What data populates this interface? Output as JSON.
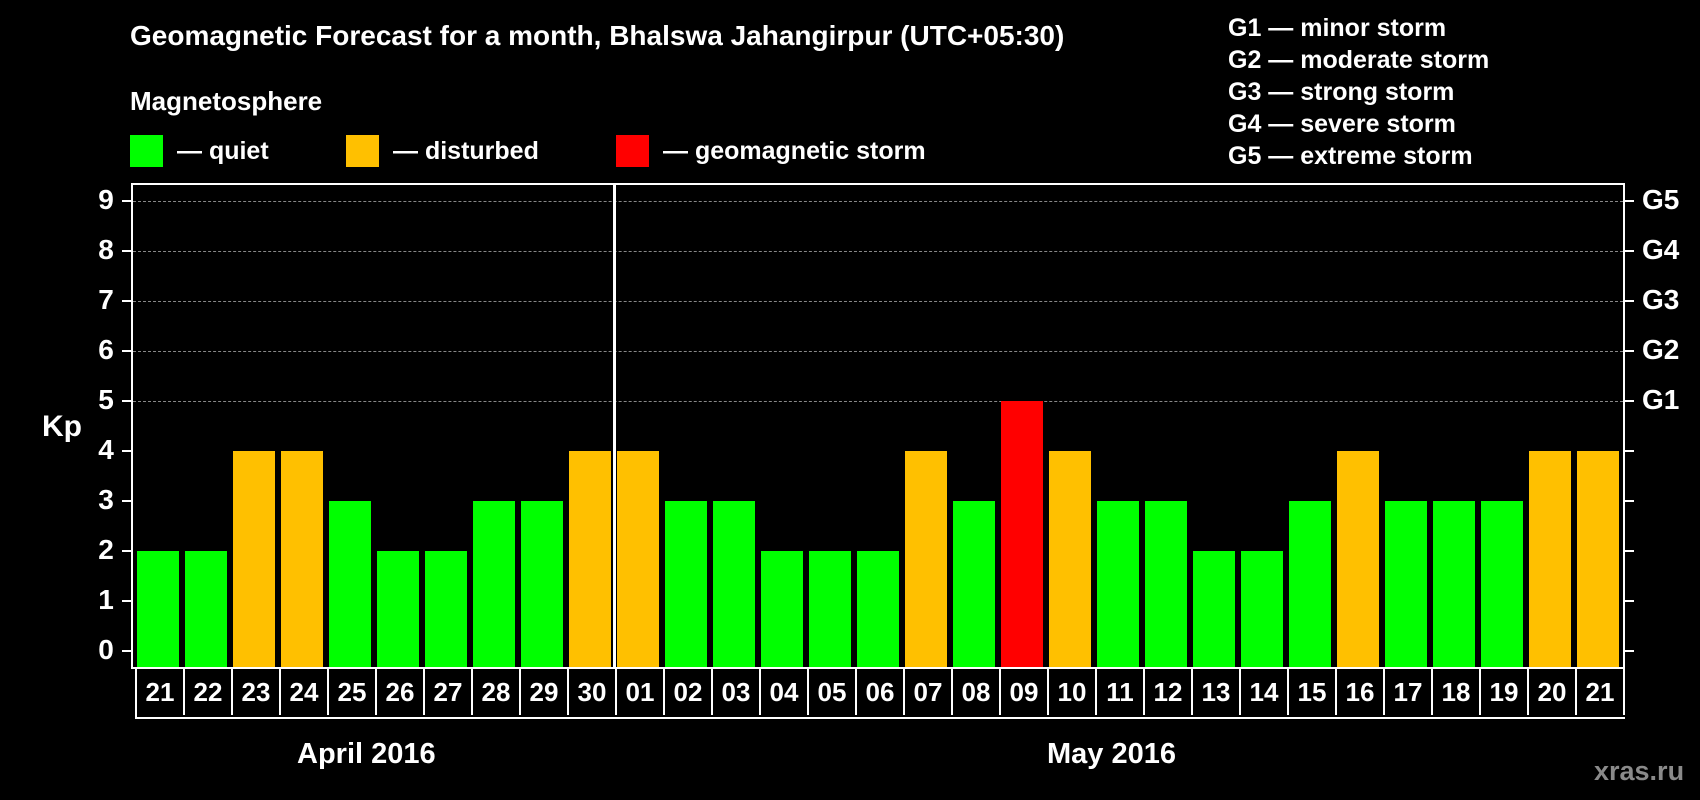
{
  "header": {
    "title": "Geomagnetic Forecast for a month, Bhalswa Jahangirpur (UTC+05:30)",
    "subtitle": "Magnetosphere"
  },
  "legend": [
    {
      "label": "— quiet",
      "color": "#00ff00"
    },
    {
      "label": "— disturbed",
      "color": "#ffc000"
    },
    {
      "label": "— geomagnetic storm",
      "color": "#ff0000"
    }
  ],
  "storm_scale": [
    "G1 — minor storm",
    "G2 — moderate storm",
    "G3 — strong storm",
    "G4 — severe storm",
    "G5 — extreme storm"
  ],
  "axis": {
    "ylabel": "Kp",
    "yticks": [
      "0",
      "1",
      "2",
      "3",
      "4",
      "5",
      "6",
      "7",
      "8",
      "9"
    ],
    "right_ticks": {
      "5": "G1",
      "6": "G2",
      "7": "G3",
      "8": "G4",
      "9": "G5"
    }
  },
  "months": {
    "first": "April 2016",
    "second": "May 2016"
  },
  "watermark": "xras.ru",
  "chart_data": {
    "type": "bar",
    "title": "Geomagnetic Forecast for a month, Bhalswa Jahangirpur (UTC+05:30)",
    "xlabel": "",
    "ylabel": "Kp",
    "ylim": [
      0,
      9
    ],
    "grid": true,
    "categories": [
      "21",
      "22",
      "23",
      "24",
      "25",
      "26",
      "27",
      "28",
      "29",
      "30",
      "01",
      "02",
      "03",
      "04",
      "05",
      "06",
      "07",
      "08",
      "09",
      "10",
      "11",
      "12",
      "13",
      "14",
      "15",
      "16",
      "17",
      "18",
      "19",
      "20",
      "21"
    ],
    "values": [
      2,
      2,
      4,
      4,
      3,
      2,
      2,
      3,
      3,
      4,
      4,
      3,
      3,
      2,
      2,
      2,
      4,
      3,
      5,
      4,
      3,
      3,
      2,
      2,
      3,
      4,
      3,
      3,
      3,
      4,
      4
    ],
    "status": [
      "quiet",
      "quiet",
      "disturbed",
      "disturbed",
      "quiet",
      "quiet",
      "quiet",
      "quiet",
      "quiet",
      "disturbed",
      "disturbed",
      "quiet",
      "quiet",
      "quiet",
      "quiet",
      "quiet",
      "disturbed",
      "quiet",
      "storm",
      "disturbed",
      "quiet",
      "quiet",
      "quiet",
      "quiet",
      "quiet",
      "disturbed",
      "quiet",
      "quiet",
      "quiet",
      "disturbed",
      "disturbed"
    ],
    "colors": {
      "quiet": "#00ff00",
      "disturbed": "#ffc000",
      "storm": "#ff0000"
    },
    "month_groups": [
      {
        "label": "April 2016",
        "from": 0,
        "to": 9
      },
      {
        "label": "May 2016",
        "from": 10,
        "to": 30
      }
    ],
    "secondary_axis": {
      "5": "G1",
      "6": "G2",
      "7": "G3",
      "8": "G4",
      "9": "G5"
    },
    "legend": [
      "quiet",
      "disturbed",
      "geomagnetic storm"
    ]
  }
}
